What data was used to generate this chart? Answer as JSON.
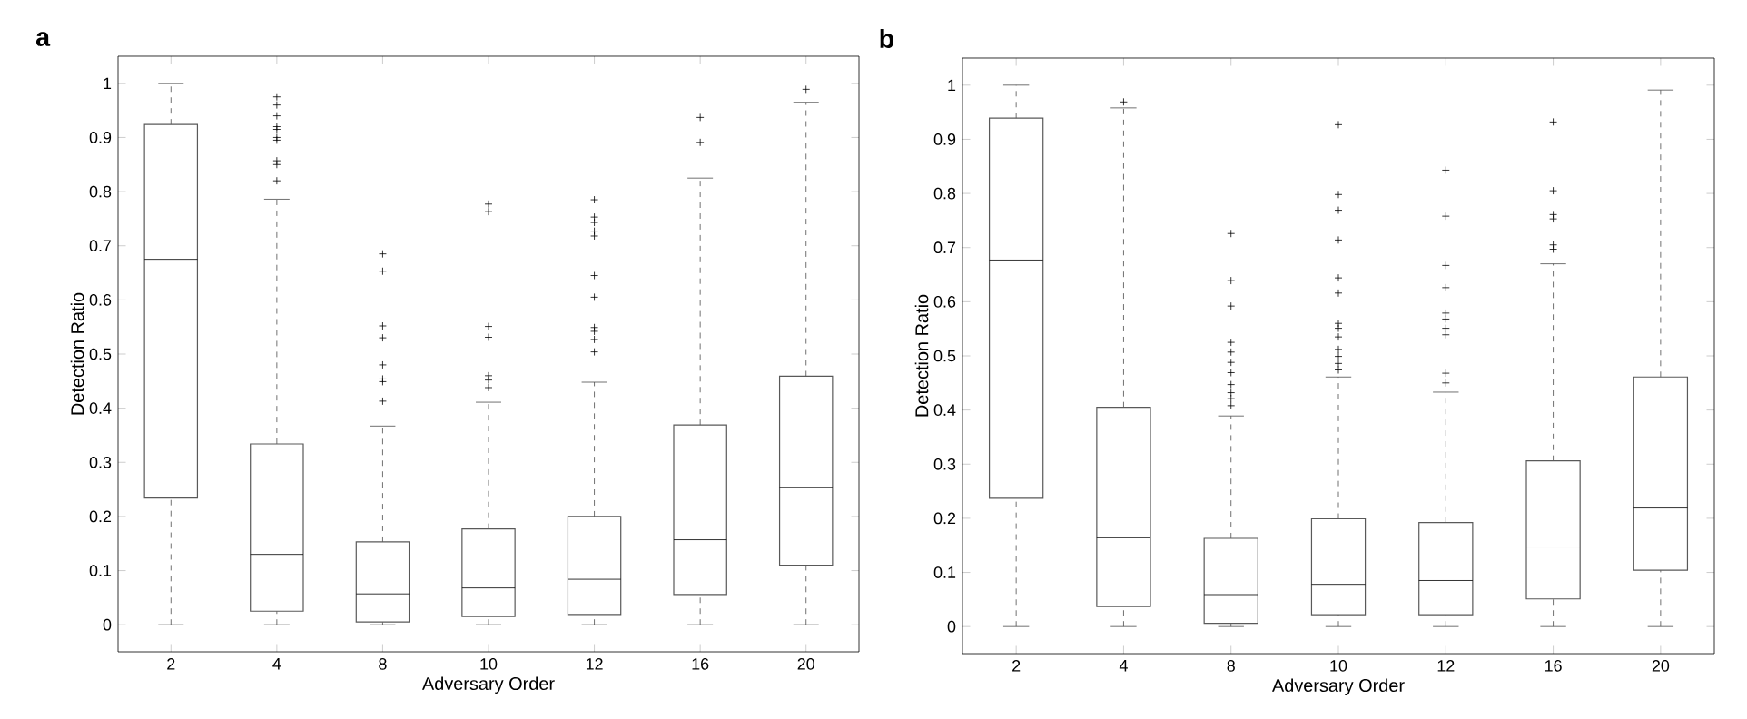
{
  "chart_data": [
    {
      "type": "box",
      "title": "a",
      "xlabel": "Adversary Order",
      "ylabel": "Detection Ratio",
      "categories": [
        "2",
        "4",
        "8",
        "10",
        "12",
        "16",
        "20"
      ],
      "ylim": [
        -0.05,
        1.05
      ],
      "yticks": [
        0,
        0.1,
        0.2,
        0.3,
        0.4,
        0.5,
        0.6,
        0.7,
        0.8,
        0.9,
        1
      ],
      "boxes": [
        {
          "low": 0,
          "q1": 0.234,
          "median": 0.675,
          "q3": 0.924,
          "high": 1
        },
        {
          "low": 0,
          "q1": 0.025,
          "median": 0.13,
          "q3": 0.334,
          "high": 0.786,
          "outliers": [
            0.975,
            0.96,
            0.94,
            0.92,
            0.915,
            0.9,
            0.895,
            0.857,
            0.85,
            0.82
          ]
        },
        {
          "low": 0,
          "q1": 0.005,
          "median": 0.057,
          "q3": 0.153,
          "high": 0.367,
          "outliers": [
            0.685,
            0.653,
            0.552,
            0.53,
            0.48,
            0.454,
            0.449,
            0.413
          ]
        },
        {
          "low": 0,
          "q1": 0.015,
          "median": 0.068,
          "q3": 0.177,
          "high": 0.411,
          "outliers": [
            0.777,
            0.763,
            0.551,
            0.531,
            0.46,
            0.452,
            0.438
          ]
        },
        {
          "low": 0,
          "q1": 0.019,
          "median": 0.084,
          "q3": 0.2,
          "high": 0.448,
          "outliers": [
            0.785,
            0.753,
            0.743,
            0.727,
            0.718,
            0.645,
            0.605,
            0.549,
            0.542,
            0.527,
            0.504
          ]
        },
        {
          "low": 0,
          "q1": 0.056,
          "median": 0.157,
          "q3": 0.369,
          "high": 0.825,
          "outliers": [
            0.937,
            0.891
          ]
        },
        {
          "low": 0,
          "q1": 0.11,
          "median": 0.254,
          "q3": 0.459,
          "high": 0.965,
          "outliers": [
            0.989
          ]
        }
      ]
    },
    {
      "type": "box",
      "title": "b",
      "xlabel": "Adversary Order",
      "ylabel": "Detection Ratio",
      "categories": [
        "2",
        "4",
        "8",
        "10",
        "12",
        "16",
        "20"
      ],
      "ylim": [
        -0.05,
        1.05
      ],
      "yticks": [
        0,
        0.1,
        0.2,
        0.3,
        0.4,
        0.5,
        0.6,
        0.7,
        0.8,
        0.9,
        1
      ],
      "boxes": [
        {
          "low": 0,
          "q1": 0.237,
          "median": 0.677,
          "q3": 0.939,
          "high": 1
        },
        {
          "low": 0,
          "q1": 0.037,
          "median": 0.164,
          "q3": 0.405,
          "high": 0.958,
          "outliers": [
            0.969
          ]
        },
        {
          "low": 0,
          "q1": 0.006,
          "median": 0.059,
          "q3": 0.163,
          "high": 0.389,
          "outliers": [
            0.726,
            0.639,
            0.592,
            0.525,
            0.507,
            0.488,
            0.469,
            0.447,
            0.432,
            0.421,
            0.408
          ]
        },
        {
          "low": 0,
          "q1": 0.022,
          "median": 0.078,
          "q3": 0.199,
          "high": 0.461,
          "outliers": [
            0.927,
            0.798,
            0.769,
            0.714,
            0.644,
            0.616,
            0.56,
            0.551,
            0.535,
            0.512,
            0.499,
            0.486,
            0.474
          ]
        },
        {
          "low": 0,
          "q1": 0.022,
          "median": 0.085,
          "q3": 0.192,
          "high": 0.433,
          "outliers": [
            0.843,
            0.758,
            0.667,
            0.626,
            0.579,
            0.568,
            0.551,
            0.539,
            0.468,
            0.45
          ]
        },
        {
          "low": 0,
          "q1": 0.051,
          "median": 0.147,
          "q3": 0.306,
          "high": 0.67,
          "outliers": [
            0.932,
            0.805,
            0.761,
            0.753,
            0.705,
            0.697
          ]
        },
        {
          "low": 0,
          "q1": 0.104,
          "median": 0.219,
          "q3": 0.461,
          "high": 0.991
        }
      ]
    }
  ]
}
